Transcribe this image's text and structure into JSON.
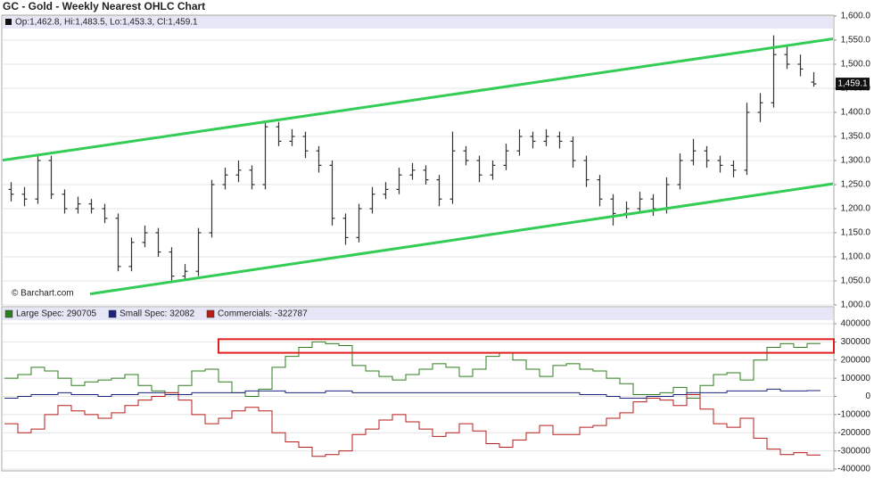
{
  "chart_data": [
    {
      "type": "ohlc",
      "title": "GC - Gold - Weekly Nearest OHLC Chart",
      "header": "Op:1,462.8, Hi:1,483.5, Lo:1,453.3, Cl:1,459.1",
      "credit": "© Barchart.com",
      "color": "#333333",
      "open": [
        1240,
        1230,
        1220,
        1300,
        1230,
        1200,
        1210,
        1200,
        1180,
        1080,
        1130,
        1150,
        1110,
        1060,
        1070,
        1150,
        1250,
        1270,
        1280,
        1250,
        1370,
        1340,
        1350,
        1320,
        1290,
        1180,
        1140,
        1200,
        1230,
        1240,
        1270,
        1280,
        1260,
        1220,
        1320,
        1300,
        1270,
        1290,
        1320,
        1350,
        1340,
        1350,
        1340,
        1300,
        1260,
        1220,
        1190,
        1200,
        1220,
        1200,
        1250,
        1300,
        1320,
        1300,
        1290,
        1280,
        1400,
        1420,
        1520,
        1500,
        1462.8
      ],
      "high": [
        1255,
        1245,
        1310,
        1310,
        1240,
        1225,
        1220,
        1210,
        1190,
        1140,
        1165,
        1160,
        1120,
        1085,
        1160,
        1260,
        1285,
        1300,
        1290,
        1380,
        1380,
        1365,
        1360,
        1330,
        1300,
        1190,
        1210,
        1245,
        1255,
        1285,
        1295,
        1290,
        1270,
        1360,
        1330,
        1310,
        1300,
        1335,
        1365,
        1360,
        1365,
        1360,
        1350,
        1310,
        1270,
        1230,
        1215,
        1235,
        1230,
        1265,
        1315,
        1345,
        1330,
        1310,
        1300,
        1420,
        1440,
        1560,
        1540,
        1520,
        1483.5
      ],
      "low": [
        1215,
        1205,
        1210,
        1220,
        1190,
        1190,
        1190,
        1170,
        1070,
        1070,
        1120,
        1100,
        1050,
        1050,
        1060,
        1140,
        1240,
        1255,
        1240,
        1240,
        1330,
        1330,
        1305,
        1275,
        1165,
        1125,
        1130,
        1190,
        1220,
        1230,
        1260,
        1250,
        1205,
        1210,
        1290,
        1255,
        1260,
        1280,
        1310,
        1325,
        1330,
        1325,
        1285,
        1245,
        1205,
        1165,
        1180,
        1190,
        1185,
        1190,
        1240,
        1290,
        1285,
        1275,
        1265,
        1270,
        1380,
        1410,
        1490,
        1475,
        1453.3
      ],
      "close": [
        1230,
        1220,
        1300,
        1230,
        1200,
        1210,
        1200,
        1180,
        1080,
        1130,
        1150,
        1110,
        1060,
        1070,
        1150,
        1250,
        1270,
        1280,
        1250,
        1370,
        1340,
        1350,
        1320,
        1290,
        1180,
        1140,
        1200,
        1230,
        1240,
        1270,
        1280,
        1260,
        1220,
        1320,
        1300,
        1270,
        1290,
        1320,
        1350,
        1340,
        1350,
        1340,
        1300,
        1260,
        1220,
        1190,
        1200,
        1220,
        1200,
        1250,
        1300,
        1320,
        1300,
        1290,
        1280,
        1400,
        1420,
        1520,
        1500,
        1490,
        1459.1
      ],
      "last_price": {
        "value": 1459.1,
        "label": "1,459.1"
      },
      "trendlines": [
        {
          "color": "#33cc55",
          "x": [
            -0.8,
            61.5
          ],
          "y": [
            1300,
            1553
          ]
        },
        {
          "color": "#33cc55",
          "x": [
            5.9,
            61.5
          ],
          "y": [
            1023,
            1252
          ]
        }
      ],
      "ylim": [
        1000,
        1600
      ],
      "yticks": [
        {
          "value": 1000,
          "label": "1,000.0"
        },
        {
          "value": 1050,
          "label": "1,050.0"
        },
        {
          "value": 1100,
          "label": "1,100.0"
        },
        {
          "value": 1150,
          "label": "1,150.0"
        },
        {
          "value": 1200,
          "label": "1,200.0"
        },
        {
          "value": 1250,
          "label": "1,250.0"
        },
        {
          "value": 1300,
          "label": "1,300.0"
        },
        {
          "value": 1350,
          "label": "1,350.0"
        },
        {
          "value": 1400,
          "label": "1,400.0"
        },
        {
          "value": 1450,
          "label": "1,450.0"
        },
        {
          "value": 1500,
          "label": "1,500.0"
        },
        {
          "value": 1550,
          "label": "1,550.0"
        },
        {
          "value": 1600,
          "label": "1,600.0"
        }
      ],
      "grid": true
    },
    {
      "type": "step",
      "series": [
        {
          "label": "Large Spec: 290705",
          "color": "#2e7d1e",
          "values": [
            100000,
            120000,
            160000,
            140000,
            100000,
            60000,
            80000,
            90000,
            100000,
            120000,
            60000,
            30000,
            20000,
            60000,
            140000,
            150000,
            80000,
            20000,
            0,
            40000,
            160000,
            220000,
            270000,
            300000,
            290000,
            280000,
            170000,
            140000,
            110000,
            90000,
            120000,
            150000,
            180000,
            160000,
            110000,
            150000,
            220000,
            240000,
            200000,
            150000,
            110000,
            170000,
            180000,
            150000,
            140000,
            100000,
            70000,
            10000,
            10000,
            20000,
            50000,
            -10000,
            60000,
            120000,
            130000,
            90000,
            200000,
            270000,
            290000,
            270000,
            290705
          ]
        },
        {
          "label": "Small Spec: 32082",
          "color": "#1a237e",
          "values": [
            -10000,
            0,
            10000,
            10000,
            20000,
            10000,
            10000,
            0,
            10000,
            10000,
            20000,
            20000,
            10000,
            10000,
            20000,
            20000,
            20000,
            20000,
            30000,
            30000,
            30000,
            20000,
            20000,
            20000,
            30000,
            30000,
            20000,
            20000,
            20000,
            20000,
            20000,
            20000,
            20000,
            20000,
            20000,
            20000,
            20000,
            20000,
            20000,
            20000,
            20000,
            20000,
            20000,
            10000,
            10000,
            0,
            -10000,
            -10000,
            0,
            0,
            10000,
            20000,
            20000,
            20000,
            30000,
            30000,
            30000,
            40000,
            30000,
            30000,
            32082
          ]
        },
        {
          "label": "Commercials: -322787",
          "color": "#b71c1c",
          "values": [
            -150000,
            -200000,
            -180000,
            -100000,
            -50000,
            -80000,
            -100000,
            -120000,
            -90000,
            -50000,
            -20000,
            0,
            20000,
            -20000,
            -100000,
            -150000,
            -120000,
            -80000,
            -60000,
            -80000,
            -200000,
            -250000,
            -280000,
            -330000,
            -320000,
            -300000,
            -210000,
            -180000,
            -130000,
            -100000,
            -140000,
            -180000,
            -220000,
            -200000,
            -150000,
            -190000,
            -260000,
            -280000,
            -240000,
            -200000,
            -160000,
            -210000,
            -210000,
            -170000,
            -160000,
            -120000,
            -90000,
            -30000,
            -10000,
            -20000,
            -50000,
            10000,
            -70000,
            -150000,
            -170000,
            -120000,
            -230000,
            -290000,
            -320000,
            -310000,
            -322787
          ]
        }
      ],
      "highlight_box": {
        "color": "#e02020",
        "x": [
          15.5,
          61.5
        ],
        "y": [
          240000,
          315000
        ]
      },
      "ylim": [
        -400000,
        400000
      ],
      "yticks": [
        -400000,
        -300000,
        -200000,
        -100000,
        0,
        100000,
        200000,
        300000,
        400000
      ],
      "grid": true
    }
  ]
}
